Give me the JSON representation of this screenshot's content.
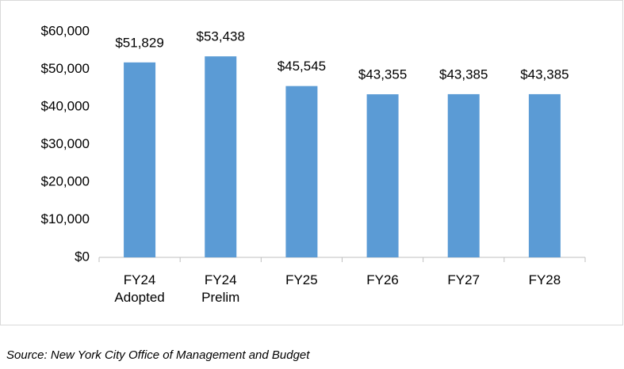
{
  "chart_data": {
    "type": "bar",
    "categories": [
      "FY24 Adopted",
      "FY24 Prelim",
      "FY25",
      "FY26",
      "FY27",
      "FY28"
    ],
    "values": [
      51829,
      53438,
      45545,
      43355,
      43385,
      43385
    ],
    "value_labels": [
      "$51,829",
      "$53,438",
      "$45,545",
      "$43,355",
      "$43,385",
      "$43,385"
    ],
    "color": "#5b9bd5",
    "ylim": [
      0,
      60000
    ],
    "yticks": [
      {
        "value": 0,
        "label": "$0"
      },
      {
        "value": 10000,
        "label": "$10,000"
      },
      {
        "value": 20000,
        "label": "$20,000"
      },
      {
        "value": 30000,
        "label": "$30,000"
      },
      {
        "value": 40000,
        "label": "$40,000"
      },
      {
        "value": 50000,
        "label": "$50,000"
      },
      {
        "value": 60000,
        "label": "$60,000"
      }
    ],
    "grid": false,
    "source": "Source: New York City Office of Management and Budget"
  }
}
